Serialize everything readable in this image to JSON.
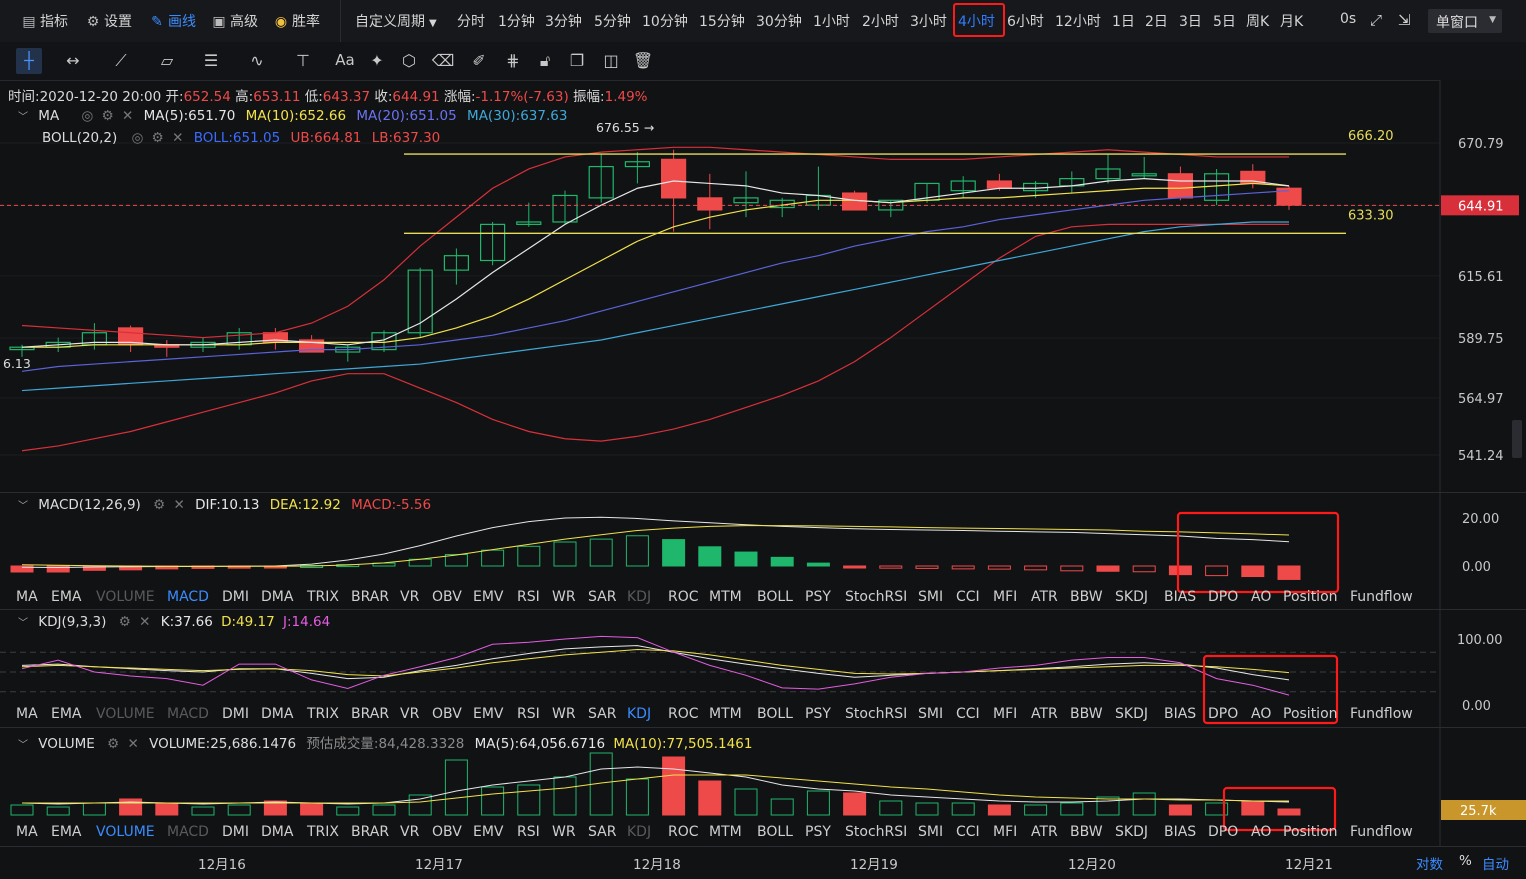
{
  "top_menu": {
    "indicators": "指标",
    "settings": "设置",
    "draw": "画线",
    "advanced": "高级",
    "winrate": "胜率",
    "custom_period": "自定义周期",
    "periods": [
      "分时",
      "1分钟",
      "3分钟",
      "5分钟",
      "10分钟",
      "15分钟",
      "30分钟",
      "1小时",
      "2小时",
      "3小时",
      "4小时",
      "6小时",
      "12小时",
      "1日",
      "2日",
      "3日",
      "5日",
      "周K",
      "月K"
    ],
    "active_period": "4小时",
    "countdown": "0s",
    "window_mode": "单窗口"
  },
  "drawing_tools": [
    "crosshair-icon",
    "horizontal-line-icon",
    "trend-line-icon",
    "rectangle-icon",
    "parallel-lines-icon",
    "wave-icon",
    "fibonacci-icon",
    "text-tool",
    "annotation-icon",
    "shape-icon",
    "pencil-icon",
    "measure-icon",
    "hide-drawings-icon",
    "lock-icon",
    "copy-icon",
    "delete-icon"
  ],
  "text_tool_label": "Aa",
  "ohlc": {
    "time_label": "时间:",
    "time": "2020-12-20 20:00",
    "open_label": "开:",
    "open": "652.54",
    "high_label": "高:",
    "high": "653.11",
    "low_label": "低:",
    "low": "643.37",
    "close_label": "收:",
    "close": "644.91",
    "change_label": "涨幅:",
    "change": "-1.17%(-7.63)",
    "amplitude_label": "振幅:",
    "amplitude": "1.49%"
  },
  "ma_legend": {
    "name": "MA",
    "ma5": "MA(5):651.70",
    "ma10": "MA(10):652.66",
    "ma20": "MA(20):651.05",
    "ma30": "MA(30):637.63"
  },
  "boll_legend": {
    "name": "BOLL(20,2)",
    "boll": "BOLL:651.05",
    "ub": "UB:664.81",
    "lb": "LB:637.30"
  },
  "price_axis": [
    "670.79",
    "644.91",
    "615.61",
    "589.75",
    "564.97",
    "541.24"
  ],
  "price_annotations": {
    "high_marker": "676.55 →",
    "left_marker": "6.13",
    "upper_line": "666.20",
    "lower_line": "633.30",
    "current_price": "644.91"
  },
  "macd_legend": {
    "name": "MACD(12,26,9)",
    "dif": "DIF:10.13",
    "dea": "DEA:12.92",
    "macd": "MACD:-5.56"
  },
  "macd_axis": [
    "20.00",
    "0.00"
  ],
  "kdj_legend": {
    "name": "KDJ(9,3,3)",
    "k": "K:37.66",
    "d": "D:49.17",
    "j": "J:14.64"
  },
  "kdj_axis": [
    "100.00",
    "0.00"
  ],
  "volume_legend": {
    "name": "VOLUME",
    "volume": "VOLUME:25,686.1476",
    "estimate": "预估成交量:84,428.3328",
    "ma5": "MA(5):64,056.6716",
    "ma10": "MA(10):77,505.1461"
  },
  "volume_axis": {
    "current": "25.7k"
  },
  "indicator_tabs": [
    "MA",
    "EMA",
    "VOLUME",
    "MACD",
    "DMI",
    "DMA",
    "TRIX",
    "BRAR",
    "VR",
    "OBV",
    "EMV",
    "RSI",
    "WR",
    "SAR",
    "KDJ",
    "ROC",
    "MTM",
    "BOLL",
    "PSY",
    "StochRSI",
    "SMI",
    "CCI",
    "MFI",
    "ATR",
    "BBW",
    "SKDJ",
    "BIAS",
    "DPO",
    "AO",
    "Position",
    "Fundflow"
  ],
  "time_axis": [
    "12月16",
    "12月17",
    "12月18",
    "12月19",
    "12月20",
    "12月21"
  ],
  "bottom_right": {
    "log": "对数",
    "percent": "%",
    "auto": "自动"
  },
  "colors": {
    "up": "#1fb76b",
    "down": "#ee4a4a",
    "ma5": "#e6e6e6",
    "ma10": "#f2e24a",
    "ma20": "#5a63d9",
    "ma30": "#3fa8d8",
    "accent": "#2f7cff",
    "highlight": "#ff1a1a"
  }
}
